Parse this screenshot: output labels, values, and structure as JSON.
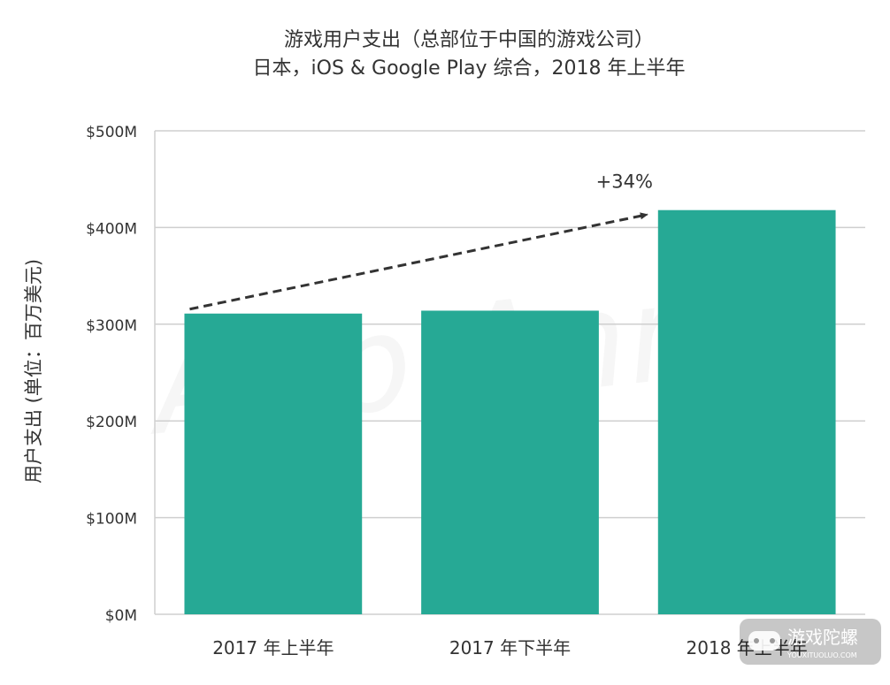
{
  "chart_data": {
    "type": "bar",
    "title": "游戏用户支出（总部位于中国的游戏公司）",
    "subtitle": "日本，iOS & Google Play 综合，2018 年上半年",
    "ylabel": "用户支出 (单位：百万美元)",
    "xlabel": "",
    "categories": [
      "2017 年上半年",
      "2017 年下半年",
      "2018 年上半年"
    ],
    "values": [
      311,
      314,
      418
    ],
    "ylim": [
      0,
      500
    ],
    "yticks": [
      0,
      100,
      200,
      300,
      400,
      500
    ],
    "ytick_labels": [
      "$0M",
      "$100M",
      "$200M",
      "$300M",
      "$400M",
      "$500M"
    ],
    "grid": true,
    "annotation": {
      "text": "+34%",
      "type": "dashed-arrow",
      "from_category": "2017 年上半年",
      "to_category": "2018 年上半年"
    },
    "colors": {
      "bar": "#26a995",
      "grid": "#cfcfcf",
      "text": "#333333",
      "arrow": "#333333"
    }
  },
  "watermark": {
    "background_text": "App Annie",
    "logo_text": "游戏陀螺",
    "logo_subtext": "YOUXITUOLUO.COM"
  }
}
